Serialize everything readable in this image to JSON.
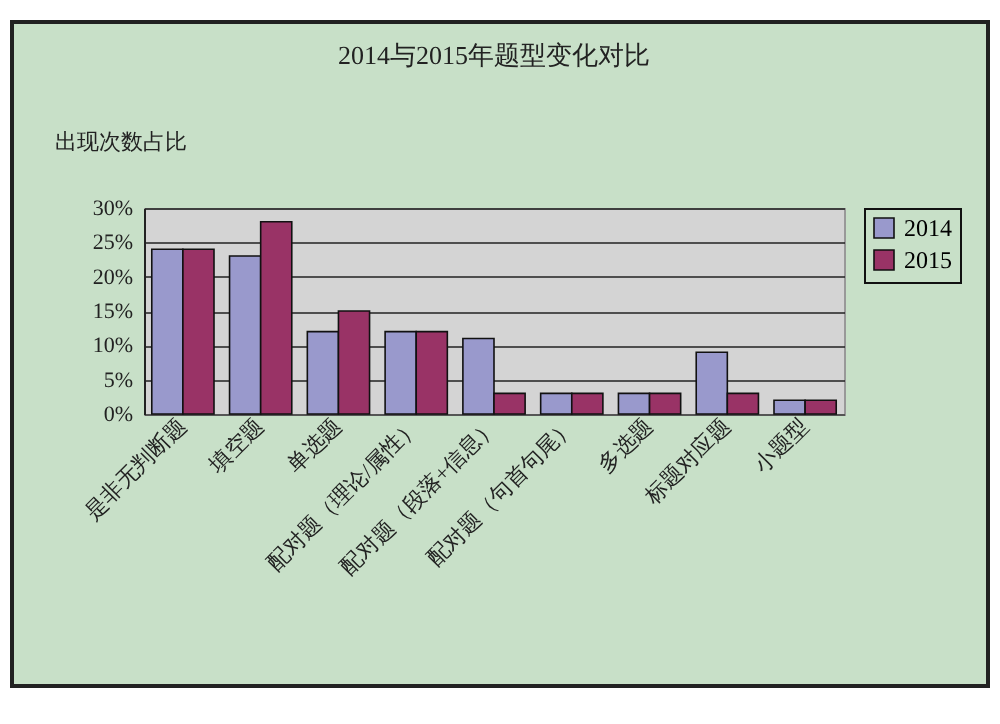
{
  "chart_data": {
    "type": "bar",
    "title": "2014与2015年题型变化对比",
    "ylabel": "出现次数占比",
    "categories": [
      "是非无判断题",
      "填空题",
      "单选题",
      "配对题（理论/属性）",
      "配对题（段落+信息）",
      "配对题（句首句尾）",
      "多选题",
      "标题对应题",
      "小题型"
    ],
    "series": [
      {
        "name": "2014",
        "color": "#9999cc",
        "values": [
          24,
          23,
          12,
          12,
          11,
          3,
          3,
          9,
          2
        ]
      },
      {
        "name": "2015",
        "color": "#993366",
        "values": [
          24,
          28,
          15,
          12,
          3,
          3,
          3,
          3,
          2
        ]
      }
    ],
    "ylim": [
      0,
      30
    ],
    "yticks": [
      {
        "value": 0,
        "label": "0%"
      },
      {
        "value": 5,
        "label": "5%"
      },
      {
        "value": 10,
        "label": "10%"
      },
      {
        "value": 15,
        "label": "15%"
      },
      {
        "value": 20,
        "label": "20%"
      },
      {
        "value": 25,
        "label": "25%"
      },
      {
        "value": 30,
        "label": "30%"
      }
    ],
    "grid": "y",
    "legend": "right"
  }
}
